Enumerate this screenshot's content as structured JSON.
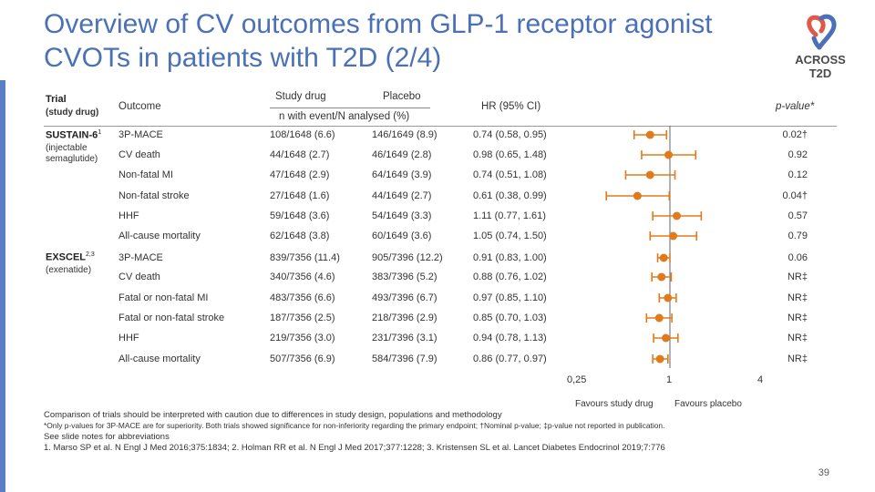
{
  "title": "Overview of CV outcomes from GLP-1 receptor agonist CVOTs in patients with T2D (2/4)",
  "logo": {
    "line1": "ACROSS",
    "line2": "T2D"
  },
  "colors": {
    "accent": "#4a70b8",
    "marker": "#e07b1c",
    "sidebar": "#5a7fc7"
  },
  "headers": {
    "trial": "Trial",
    "trial_sub": "(study drug)",
    "outcome": "Outcome",
    "study_drug": "Study drug",
    "placebo": "Placebo",
    "n_label": "n with event/N analysed (%)",
    "hr": "HR (95% CI)",
    "pvalue": "p-value*"
  },
  "trials": [
    {
      "name": "SUSTAIN-6",
      "sup": "1",
      "drug": "(injectable semaglutide)"
    },
    {
      "name": "EXSCEL",
      "sup": "2,3",
      "drug": "(exenatide)"
    }
  ],
  "rows": [
    {
      "outcome": "3P-MACE",
      "drug": "108/1648 (6.6)",
      "placebo": "146/1649 (8.9)",
      "hr_text": "0.74 (0.58, 0.95)",
      "p": "0.02†"
    },
    {
      "outcome": "CV death",
      "drug": "44/1648 (2.7)",
      "placebo": "46/1649 (2.8)",
      "hr_text": "0.98 (0.65, 1.48)",
      "p": "0.92"
    },
    {
      "outcome": "Non-fatal MI",
      "drug": "47/1648 (2.9)",
      "placebo": "64/1649 (3.9)",
      "hr_text": "0.74 (0.51, 1.08)",
      "p": "0.12"
    },
    {
      "outcome": "Non-fatal stroke",
      "drug": "27/1648 (1.6)",
      "placebo": "44/1649 (2.7)",
      "hr_text": "0.61 (0.38, 0.99)",
      "p": "0.04†"
    },
    {
      "outcome": "HHF",
      "drug": "59/1648 (3.6)",
      "placebo": "54/1649 (3.3)",
      "hr_text": "1.11 (0.77, 1.61)",
      "p": "0.57"
    },
    {
      "outcome": "All-cause mortality",
      "drug": "62/1648 (3.8)",
      "placebo": "60/1649 (3.6)",
      "hr_text": "1.05 (0.74, 1.50)",
      "p": "0.79"
    },
    {
      "outcome": "3P-MACE",
      "drug": "839/7356 (11.4)",
      "placebo": "905/7396 (12.2)",
      "hr_text": "0.91 (0.83, 1.00)",
      "p": "0.06"
    },
    {
      "outcome": "CV death",
      "drug": "340/7356 (4.6)",
      "placebo": "383/7396 (5.2)",
      "hr_text": "0.88 (0.76, 1.02)",
      "p": "NR‡"
    },
    {
      "outcome": "Fatal or non-fatal MI",
      "drug": "483/7356 (6.6)",
      "placebo": "493/7396 (6.7)",
      "hr_text": "0.97 (0.85, 1.10)",
      "p": "NR‡"
    },
    {
      "outcome": "Fatal or non-fatal stroke",
      "drug": "187/7356 (2.5)",
      "placebo": "218/7396 (2.9)",
      "hr_text": "0.85 (0.70, 1.03)",
      "p": "NR‡"
    },
    {
      "outcome": "HHF",
      "drug": "219/7356 (3.0)",
      "placebo": "231/7396 (3.1)",
      "hr_text": "0.94 (0.78, 1.13)",
      "p": "NR‡"
    },
    {
      "outcome": "All-cause mortality",
      "drug": "507/7356 (6.9)",
      "placebo": "584/7396 (7.9)",
      "hr_text": "0.86 (0.77, 0.97)",
      "p": "NR‡"
    }
  ],
  "chart_data": {
    "type": "forest",
    "scale": "log",
    "xlim": [
      0.25,
      4
    ],
    "reference_line": 1,
    "tick_labels": [
      "0,25",
      "1",
      "4"
    ],
    "left_label": "Favours study drug",
    "right_label": "Favours placebo",
    "series": [
      {
        "name": "SUSTAIN-6 3P-MACE",
        "hr": 0.74,
        "lo": 0.58,
        "hi": 0.95
      },
      {
        "name": "SUSTAIN-6 CV death",
        "hr": 0.98,
        "lo": 0.65,
        "hi": 1.48
      },
      {
        "name": "SUSTAIN-6 Non-fatal MI",
        "hr": 0.74,
        "lo": 0.51,
        "hi": 1.08
      },
      {
        "name": "SUSTAIN-6 Non-fatal stroke",
        "hr": 0.61,
        "lo": 0.38,
        "hi": 0.99
      },
      {
        "name": "SUSTAIN-6 HHF",
        "hr": 1.11,
        "lo": 0.77,
        "hi": 1.61
      },
      {
        "name": "SUSTAIN-6 All-cause mortality",
        "hr": 1.05,
        "lo": 0.74,
        "hi": 1.5
      },
      {
        "name": "EXSCEL 3P-MACE",
        "hr": 0.91,
        "lo": 0.83,
        "hi": 1.0
      },
      {
        "name": "EXSCEL CV death",
        "hr": 0.88,
        "lo": 0.76,
        "hi": 1.02
      },
      {
        "name": "EXSCEL Fatal or non-fatal MI",
        "hr": 0.97,
        "lo": 0.85,
        "hi": 1.1
      },
      {
        "name": "EXSCEL Fatal or non-fatal stroke",
        "hr": 0.85,
        "lo": 0.7,
        "hi": 1.03
      },
      {
        "name": "EXSCEL HHF",
        "hr": 0.94,
        "lo": 0.78,
        "hi": 1.13
      },
      {
        "name": "EXSCEL All-cause mortality",
        "hr": 0.86,
        "lo": 0.77,
        "hi": 0.97
      }
    ]
  },
  "footnotes": {
    "line1": "Comparison of trials should be interpreted with caution due to differences in study design, populations and methodology",
    "line2": "*Only p-values for 3P-MACE are for superiority. Both trials showed significance for non-inferiority regarding the primary endpoint; †Nominal p-value; ‡p-value not reported in publication.",
    "line3": "See slide notes for abbreviations",
    "line4": "1. Marso SP et al. N Engl J Med 2016;375:1834; 2. Holman RR et al. N Engl J Med 2017;377:1228; 3. Kristensen SL et al. Lancet Diabetes Endocrinol 2019;7:776"
  },
  "page_number": "39"
}
